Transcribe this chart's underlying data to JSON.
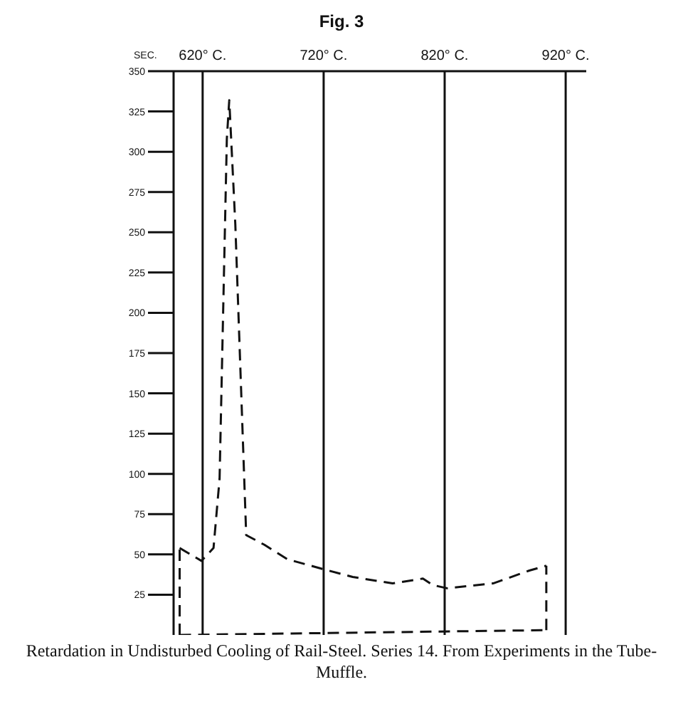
{
  "chart_data": {
    "type": "line",
    "title": "Fig. 3",
    "ylabel": "SEC.",
    "annotations": [
      "Retardation in Undisturbed Cooling of Rail-Steel.  Series 14.  From Experiments in the Tube-Muffle."
    ],
    "series": [
      {
        "color": "#111111",
        "x": [
          601,
          619,
          629,
          634,
          640,
          642,
          647,
          656,
          671,
          690,
          719,
          744,
          777,
          802,
          810,
          822,
          860,
          890,
          904
        ],
        "values": [
          54,
          46,
          54,
          97,
          308,
          332,
          255,
          62,
          56,
          47,
          41,
          36,
          32,
          35,
          31,
          29,
          32,
          40,
          43
        ]
      },
      {
        "color": "#111111",
        "x": [
          601,
          601
        ],
        "values": [
          0,
          54
        ]
      },
      {
        "color": "#111111",
        "x": [
          601,
          904
        ],
        "values": [
          0,
          3
        ]
      },
      {
        "color": "#111111",
        "x": [
          904,
          904
        ],
        "values": [
          3,
          43
        ]
      }
    ],
    "xlim": [
      596,
      937
    ],
    "xticks": [
      {
        "value": 620,
        "label": "620° C."
      },
      {
        "value": 720,
        "label": "720° C."
      },
      {
        "value": 820,
        "label": "820° C."
      },
      {
        "value": 920,
        "label": "920° C."
      }
    ],
    "ylim": [
      0,
      350
    ],
    "yticks": [
      25,
      50,
      75,
      100,
      125,
      150,
      175,
      200,
      225,
      250,
      275,
      300,
      325,
      350
    ],
    "grid": "x",
    "marker": "none",
    "line_style": "dashed"
  }
}
